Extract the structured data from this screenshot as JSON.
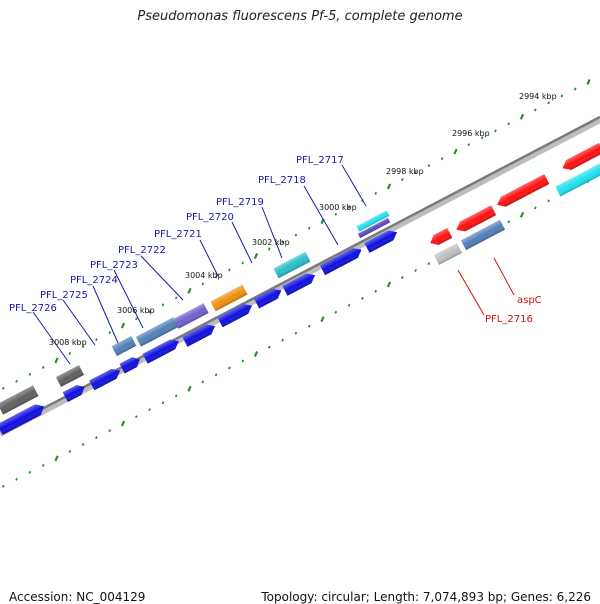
{
  "title": "Pseudomonas fluorescens Pf-5, complete genome",
  "footer": {
    "accession": "Accession: NC_004129",
    "summary": "Topology: circular; Length: 7,074,893 bp; Genes: 6,226"
  },
  "kbp_labels": [
    "2994 kbp",
    "2996 kbp",
    "2998 kbp",
    "3000 kbp",
    "3002 kbp",
    "3004 kbp",
    "3006 kbp",
    "3008 kbp"
  ],
  "colors": {
    "backbone": "#8a8a8a",
    "tick": "#2e8b2e",
    "forward_gene": "#1010e0",
    "gene_label_forward": "#1a1aa8",
    "gene_label_reverse": "#d01010",
    "red_gene": "#ff1010",
    "cyan_gene": "#20e0f0",
    "teal_gene": "#28c0c8",
    "steel_gene": "#5080b8",
    "purple_gene": "#7060d0",
    "orange_gene": "#f09010",
    "gray_gene": "#606060",
    "lightgray_gene": "#c0c0c0"
  },
  "forward_labels": [
    "PFL_2726",
    "PFL_2725",
    "PFL_2724",
    "PFL_2723",
    "PFL_2722",
    "PFL_2721",
    "PFL_2720",
    "PFL_2719",
    "PFL_2718",
    "PFL_2717"
  ],
  "reverse_labels": [
    "aspC",
    "PFL_2716"
  ]
}
